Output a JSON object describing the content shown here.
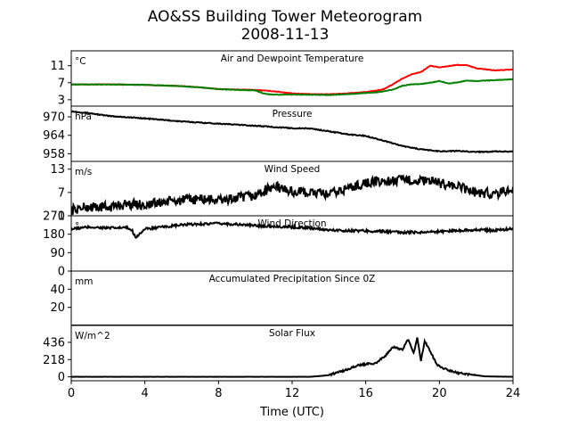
{
  "figure": {
    "title_line1": "AO&SS Building Tower Meteorogram",
    "title_line2": "2008-11-13",
    "xlabel": "Time (UTC)"
  },
  "chart_data": [
    {
      "type": "line",
      "title": "Air and Dewpoint Temperature",
      "unit": "°C",
      "ylim": [
        1.5,
        14.5
      ],
      "yticks": [
        3,
        7,
        11
      ],
      "xlim": [
        0,
        24
      ],
      "noise": 0.06,
      "series": [
        {
          "color": "#ff0000",
          "x": [
            0,
            2,
            4,
            6,
            7,
            8,
            9,
            10,
            11,
            12,
            13,
            14,
            15,
            16,
            16.5,
            17,
            17.5,
            18,
            18.5,
            19,
            19.5,
            20,
            20.5,
            21,
            21.5,
            22,
            23,
            24
          ],
          "y": [
            6.6,
            6.6,
            6.5,
            6.2,
            5.9,
            5.5,
            5.4,
            5.3,
            5.0,
            4.5,
            4.3,
            4.3,
            4.5,
            4.8,
            5.1,
            5.5,
            6.7,
            8.0,
            9.0,
            9.5,
            11.0,
            10.6,
            10.9,
            11.2,
            11.1,
            10.4,
            9.9,
            10.1
          ]
        },
        {
          "color": "#008000",
          "x": [
            0,
            2,
            4,
            6,
            7,
            8,
            9,
            10,
            10.5,
            11,
            12,
            13,
            14,
            15,
            16,
            16.5,
            17,
            17.5,
            18,
            18.5,
            19,
            19.5,
            20,
            20.5,
            21,
            21.5,
            22,
            23,
            24
          ],
          "y": [
            6.6,
            6.6,
            6.5,
            6.2,
            5.9,
            5.5,
            5.3,
            5.2,
            4.4,
            4.2,
            4.2,
            4.2,
            4.1,
            4.3,
            4.6,
            4.7,
            5.0,
            5.4,
            6.3,
            6.6,
            6.7,
            7.0,
            7.4,
            6.8,
            7.1,
            7.5,
            7.4,
            7.6,
            7.8
          ]
        }
      ]
    },
    {
      "type": "line",
      "title": "Pressure",
      "unit": "hPa",
      "ylim": [
        955.5,
        973.5
      ],
      "yticks": [
        958,
        964,
        970
      ],
      "xlim": [
        0,
        24
      ],
      "noise": 0.15,
      "series": [
        {
          "color": "#000000",
          "x": [
            0,
            1,
            2,
            4,
            6,
            8,
            10,
            12,
            13,
            14,
            15,
            16,
            17,
            18,
            19,
            20,
            21,
            22,
            23,
            24
          ],
          "y": [
            971.8,
            971.2,
            970.3,
            969.5,
            968.5,
            967.8,
            967.1,
            966.3,
            966.2,
            965.3,
            964.3,
            963.8,
            962.2,
            960.5,
            959.4,
            958.8,
            958.9,
            958.6,
            958.7,
            958.7
          ]
        }
      ]
    },
    {
      "type": "line",
      "title": "Wind Speed",
      "unit": "m/s",
      "ylim": [
        1,
        15
      ],
      "yticks": [
        1,
        7,
        13
      ],
      "xlim": [
        0,
        24
      ],
      "noise": 1.3,
      "series": [
        {
          "color": "#000000",
          "x": [
            0,
            1,
            2,
            3,
            4,
            5,
            6,
            7,
            8,
            9,
            10,
            11,
            12,
            13,
            14,
            15,
            16,
            17,
            18,
            19,
            20,
            21,
            22,
            23,
            24
          ],
          "y": [
            2.5,
            3.3,
            3.2,
            4.0,
            3.8,
            4.5,
            5.0,
            5.3,
            5.0,
            5.5,
            6.2,
            8.6,
            7.2,
            7.0,
            6.5,
            8.0,
            9.5,
            9.8,
            10.2,
            10.0,
            9.5,
            8.5,
            7.0,
            6.7,
            7.8
          ]
        }
      ]
    },
    {
      "type": "line",
      "title": "Wind Direction",
      "unit": "°",
      "ylim": [
        0,
        270
      ],
      "yticks": [
        0,
        90,
        180,
        270
      ],
      "xlim": [
        0,
        24
      ],
      "noise": 6,
      "series": [
        {
          "color": "#000000",
          "x": [
            0,
            1,
            2,
            3,
            3.3,
            3.5,
            4,
            5,
            6,
            7,
            8,
            9,
            10,
            11,
            12,
            13,
            14,
            15,
            16,
            17,
            18,
            19,
            20,
            21,
            22,
            23,
            24
          ],
          "y": [
            205,
            215,
            210,
            212,
            200,
            165,
            205,
            215,
            225,
            230,
            232,
            228,
            222,
            218,
            215,
            210,
            200,
            198,
            196,
            194,
            188,
            190,
            193,
            198,
            202,
            198,
            208
          ]
        }
      ]
    },
    {
      "type": "line",
      "title": "Accumulated Precipitation Since 0Z",
      "unit": "mm",
      "ylim": [
        0,
        60
      ],
      "yticks": [
        20,
        40
      ],
      "xlim": [
        0,
        24
      ],
      "noise": 0,
      "series": [
        {
          "color": "#000000",
          "x": [
            0,
            24
          ],
          "y": [
            0,
            0
          ]
        }
      ]
    },
    {
      "type": "line",
      "title": "Solar Flux",
      "unit": "W/m^2",
      "ylim": [
        -50,
        650
      ],
      "yticks": [
        0,
        218,
        436
      ],
      "xlim": [
        0,
        24
      ],
      "noise": 12,
      "series": [
        {
          "color": "#000000",
          "x": [
            0,
            13,
            14,
            14.5,
            15,
            15.5,
            16,
            16.5,
            17,
            17.5,
            18,
            18.3,
            18.6,
            18.8,
            19.0,
            19.2,
            19.5,
            19.8,
            20,
            20.5,
            21,
            21.5,
            22,
            22.5,
            24
          ],
          "y": [
            0,
            0,
            20,
            60,
            90,
            140,
            160,
            170,
            250,
            380,
            340,
            480,
            300,
            500,
            200,
            450,
            330,
            180,
            130,
            80,
            50,
            30,
            20,
            5,
            0
          ]
        }
      ]
    }
  ],
  "x_ticks": [
    0,
    4,
    8,
    12,
    16,
    20,
    24
  ]
}
